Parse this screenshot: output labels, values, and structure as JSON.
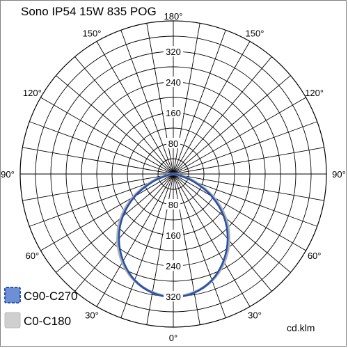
{
  "chart_data": {
    "type": "polar",
    "title": "Sono IP54 15W 835 POG",
    "unit": "cd.klm",
    "radial_ticks": [
      80,
      160,
      240,
      320
    ],
    "r_max": 400,
    "angle_labels": [
      {
        "text": "180°",
        "deg": 180,
        "side": "top"
      },
      {
        "text": "150°",
        "deg": 150,
        "side": "left"
      },
      {
        "text": "150°",
        "deg": 150,
        "side": "right"
      },
      {
        "text": "120°",
        "deg": 120,
        "side": "left"
      },
      {
        "text": "120°",
        "deg": 120,
        "side": "right"
      },
      {
        "text": "90°",
        "deg": 90,
        "side": "left"
      },
      {
        "text": "90°",
        "deg": 90,
        "side": "right"
      },
      {
        "text": "60°",
        "deg": 60,
        "side": "left"
      },
      {
        "text": "60°",
        "deg": 60,
        "side": "right"
      },
      {
        "text": "30°",
        "deg": 30,
        "side": "left"
      },
      {
        "text": "30°",
        "deg": 30,
        "side": "right"
      },
      {
        "text": "0°",
        "deg": 0,
        "side": "bottom"
      }
    ],
    "series": [
      {
        "name": "C90-C270",
        "color": "#2550b0",
        "legend_fill": "#6d8fd6",
        "gamma": [
          0,
          10,
          20,
          30,
          40,
          50,
          60,
          70,
          80,
          90,
          100
        ],
        "intensity": [
          322,
          315,
          295,
          262,
          221,
          172,
          115,
          55,
          12,
          0,
          0
        ]
      },
      {
        "name": "C0-C180",
        "color": "#b0b0b0",
        "legend_fill": "#cfcfcf",
        "gamma": [
          0,
          10,
          20,
          30,
          40,
          50,
          60,
          70,
          80,
          90,
          100
        ],
        "intensity": [
          320,
          314,
          296,
          266,
          226,
          178,
          121,
          60,
          14,
          0,
          0
        ]
      }
    ]
  }
}
